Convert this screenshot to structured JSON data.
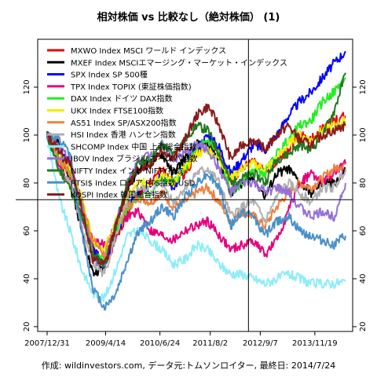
{
  "chart_data": {
    "type": "line",
    "title": "相対株価 vs 比較なし（絶対株価） (1)",
    "caption": "作成: wildinvestors.com, データ元:トムソンロイター, 最終日: 2014/7/24",
    "xlabel": "",
    "ylabel": "",
    "x_tick_labels": [
      "2007/12/31",
      "2009/4/14",
      "2010/6/24",
      "2011/8/2",
      "2012/9/7",
      "2013/11/19"
    ],
    "y_ticks": [
      20,
      40,
      60,
      80,
      100,
      120
    ],
    "ylim": [
      18,
      140
    ],
    "grid": false,
    "legend_position": "top-left",
    "crosshair": {
      "x": "2012/6/4",
      "y": 73
    },
    "colors": {
      "MXWO": "#e8000b",
      "MXEF": "#000000",
      "SPX": "#0000ff",
      "TPX": "#e6007e",
      "DAX": "#22ee22",
      "UKX": "#eeee00",
      "AS51": "#f08040",
      "HSI": "#b0b0b0",
      "SHCOMP": "#8cecfa",
      "IBOV": "#9470d8",
      "NIFTY": "#207820",
      "RTSI": "#4a90c8",
      "KOSPI": "#8b1a1a"
    },
    "series": [
      {
        "key": "MXWO",
        "name": "MXWO Index MSCI ワールド インデックス",
        "values": [
          100,
          92,
          86,
          72,
          52,
          45,
          56,
          68,
          76,
          80,
          86,
          80,
          84,
          92,
          97,
          93,
          80,
          86,
          90,
          84,
          88,
          94,
          100,
          98,
          103,
          106,
          108
        ]
      },
      {
        "key": "MXEF",
        "name": "MXEF Index MSCIエマージング・マーケット・インデックス",
        "values": [
          100,
          96,
          82,
          60,
          42,
          45,
          62,
          78,
          86,
          88,
          92,
          84,
          90,
          96,
          96,
          90,
          76,
          80,
          82,
          74,
          84,
          86,
          80,
          76,
          80,
          80,
          85
        ]
      },
      {
        "key": "SPX",
        "name": "SPX Index SP 500種",
        "values": [
          100,
          93,
          88,
          72,
          52,
          46,
          58,
          70,
          76,
          80,
          84,
          78,
          86,
          94,
          100,
          95,
          84,
          90,
          96,
          94,
          100,
          108,
          114,
          118,
          124,
          130,
          135
        ]
      },
      {
        "key": "TPX",
        "name": "TPX Index TOPIX (東証株価指数)",
        "values": [
          100,
          88,
          80,
          66,
          56,
          54,
          62,
          66,
          68,
          60,
          58,
          56,
          60,
          62,
          64,
          58,
          52,
          54,
          56,
          50,
          56,
          68,
          80,
          84,
          80,
          84,
          88
        ]
      },
      {
        "key": "DAX",
        "name": "DAX Index ドイツ DAX指数",
        "values": [
          100,
          90,
          84,
          70,
          50,
          48,
          60,
          70,
          74,
          76,
          82,
          80,
          86,
          94,
          98,
          92,
          76,
          80,
          86,
          84,
          92,
          98,
          104,
          106,
          114,
          118,
          124
        ]
      },
      {
        "key": "UKX",
        "name": "UKX Index FTSE100指数",
        "values": [
          100,
          92,
          86,
          74,
          56,
          52,
          64,
          74,
          80,
          80,
          84,
          80,
          86,
          92,
          94,
          90,
          82,
          86,
          88,
          86,
          90,
          96,
          100,
          98,
          102,
          104,
          106
        ]
      },
      {
        "key": "AS51",
        "name": "AS51 Index SP/ASX200指数",
        "values": [
          100,
          90,
          84,
          72,
          56,
          50,
          62,
          70,
          74,
          72,
          76,
          70,
          72,
          76,
          78,
          72,
          64,
          68,
          66,
          62,
          70,
          76,
          80,
          78,
          82,
          86,
          88
        ]
      },
      {
        "key": "HSI",
        "name": "HSI Index 香港 ハンセン指数",
        "values": [
          100,
          86,
          80,
          62,
          46,
          42,
          58,
          72,
          78,
          76,
          80,
          72,
          78,
          84,
          86,
          80,
          66,
          70,
          72,
          64,
          74,
          80,
          76,
          72,
          78,
          78,
          86
        ]
      },
      {
        "key": "SHCOMP",
        "name": "SHCOMP Index 中国 上海総合指数",
        "values": [
          100,
          74,
          60,
          44,
          34,
          32,
          44,
          58,
          60,
          56,
          52,
          46,
          48,
          54,
          52,
          46,
          42,
          42,
          40,
          38,
          40,
          42,
          40,
          38,
          38,
          38,
          39
        ]
      },
      {
        "key": "IBOV",
        "name": "IBOV Index ブラジル ボベスパ指数",
        "values": [
          100,
          96,
          90,
          70,
          48,
          46,
          64,
          80,
          90,
          92,
          96,
          90,
          92,
          96,
          94,
          86,
          76,
          80,
          80,
          76,
          78,
          76,
          70,
          66,
          68,
          66,
          80
        ]
      },
      {
        "key": "NIFTY",
        "name": "NIFTY Index インド NIFTY指数",
        "values": [
          100,
          86,
          78,
          66,
          50,
          46,
          62,
          80,
          88,
          90,
          96,
          92,
          98,
          104,
          102,
          92,
          80,
          82,
          84,
          80,
          90,
          92,
          96,
          94,
          100,
          110,
          126
        ]
      },
      {
        "key": "RTSI",
        "name": "RTSI$ Index ロシア RTS指数 USD",
        "values": [
          100,
          98,
          92,
          60,
          36,
          28,
          34,
          48,
          60,
          64,
          70,
          66,
          74,
          80,
          84,
          78,
          62,
          68,
          66,
          58,
          64,
          66,
          60,
          58,
          56,
          54,
          58
        ]
      },
      {
        "key": "KOSPI",
        "name": "KOSPI Index 韓国総合指数",
        "values": [
          100,
          94,
          88,
          70,
          48,
          46,
          62,
          78,
          86,
          88,
          94,
          90,
          98,
          108,
          112,
          104,
          90,
          96,
          98,
          94,
          100,
          104,
          98,
          96,
          100,
          102,
          104
        ]
      }
    ]
  }
}
